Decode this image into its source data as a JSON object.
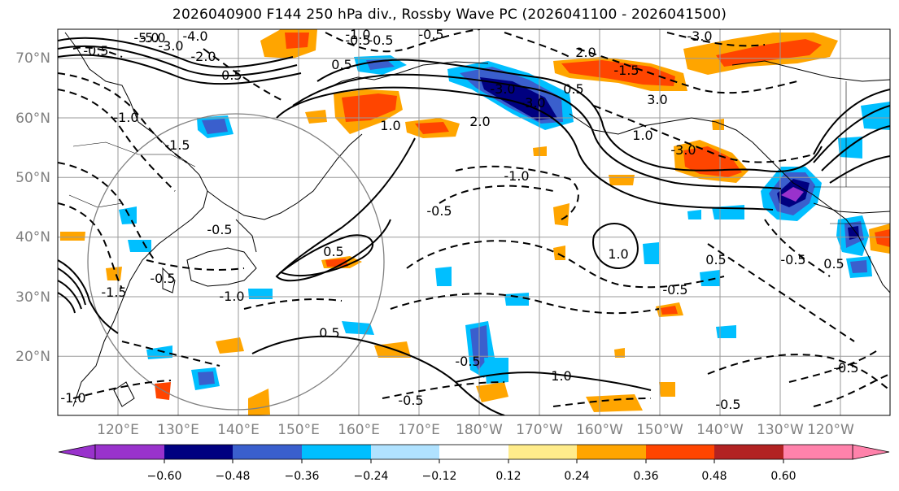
{
  "title": "2026040900 F144 250 hPa div., Rossby Wave PC (2026041100 - 2026041500)",
  "lat_labels": [
    "70°N",
    "60°N",
    "50°N",
    "40°N",
    "30°N",
    "20°N"
  ],
  "lon_labels": [
    "120°E",
    "130°E",
    "140°E",
    "150°E",
    "160°E",
    "170°E",
    "180°W",
    "170°W",
    "160°W",
    "150°W",
    "140°W",
    "130°W",
    "120°W"
  ],
  "colorbar": {
    "colors": [
      "#9932cc",
      "#000080",
      "#3a5fcd",
      "#00bfff",
      "#b0e2ff",
      "#ffffff",
      "#ffec8b",
      "#ffa500",
      "#ff4500",
      "#b22222",
      "#ff82ab"
    ],
    "ticks": [
      "−0.60",
      "−0.48",
      "−0.36",
      "−0.24",
      "−0.12",
      "0.12",
      "0.24",
      "0.36",
      "0.48",
      "0.60"
    ]
  },
  "contour_labels": [
    "-5.0",
    "-4.0",
    "-3.0",
    "-2.0",
    "-1.5",
    "-1.0",
    "-0.5",
    "-0.5",
    "-0.5",
    "-0.5",
    "-1.0",
    "-1.5",
    "-0.5",
    "-1.0",
    "-0.5",
    "-0.5",
    "-3.0",
    "-5.0",
    "-3.0",
    "-1.0",
    "-1.5",
    "-0.5",
    "-0.5",
    "-1.0",
    "-0.5",
    "-0.5",
    "-0.5",
    "-0.5",
    "-0.5",
    "-3.0",
    "-3.0",
    "0.5",
    "1.0",
    "2.0",
    "0.5",
    "0.5",
    "0.5",
    "1.0",
    "1.0",
    "1.0",
    "0.5",
    "3.0",
    "2.0",
    "0.5"
  ],
  "legend_icons": [
    "arrow-left-icon",
    "arrow-right-icon"
  ]
}
